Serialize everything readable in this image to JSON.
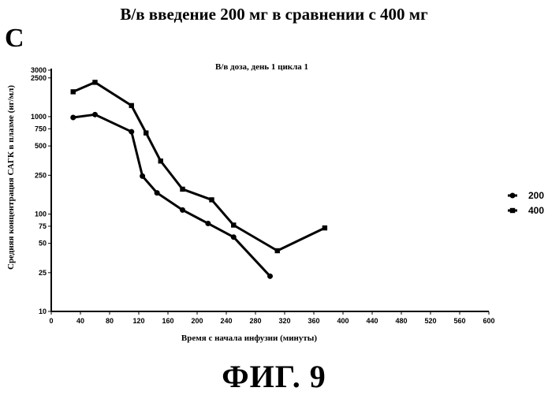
{
  "figure": {
    "title": "В/в введение 200 мг в сравнении с 400 мг",
    "panel_label": "С",
    "caption": "ФИГ. 9"
  },
  "chart_data": {
    "type": "line",
    "title": "В/в доза, день 1 цикла 1",
    "xlabel": "Время с начала инфузии (минуты)",
    "ylabel": "Средняя концентрация САГК в плазме (нг/мл)",
    "xlim": [
      0,
      600
    ],
    "ylim": [
      10,
      3000
    ],
    "yscale": "log",
    "x_ticks": [
      0,
      40,
      80,
      120,
      160,
      200,
      240,
      280,
      320,
      360,
      400,
      440,
      480,
      520,
      560,
      600
    ],
    "y_ticks": [
      10,
      25,
      50,
      75,
      100,
      250,
      500,
      750,
      1000,
      2500,
      3000
    ],
    "grid": false,
    "legend_position": "right",
    "series": [
      {
        "name": "200",
        "marker": "circle",
        "x": [
          30,
          60,
          110,
          125,
          145,
          180,
          215,
          250,
          300
        ],
        "y": [
          980,
          1050,
          700,
          245,
          165,
          110,
          80,
          58,
          23
        ]
      },
      {
        "name": "400",
        "marker": "square",
        "x": [
          30,
          60,
          110,
          130,
          150,
          180,
          220,
          250,
          310,
          375
        ],
        "y": [
          1800,
          2250,
          1300,
          680,
          350,
          180,
          140,
          77,
          42,
          72
        ]
      }
    ]
  }
}
